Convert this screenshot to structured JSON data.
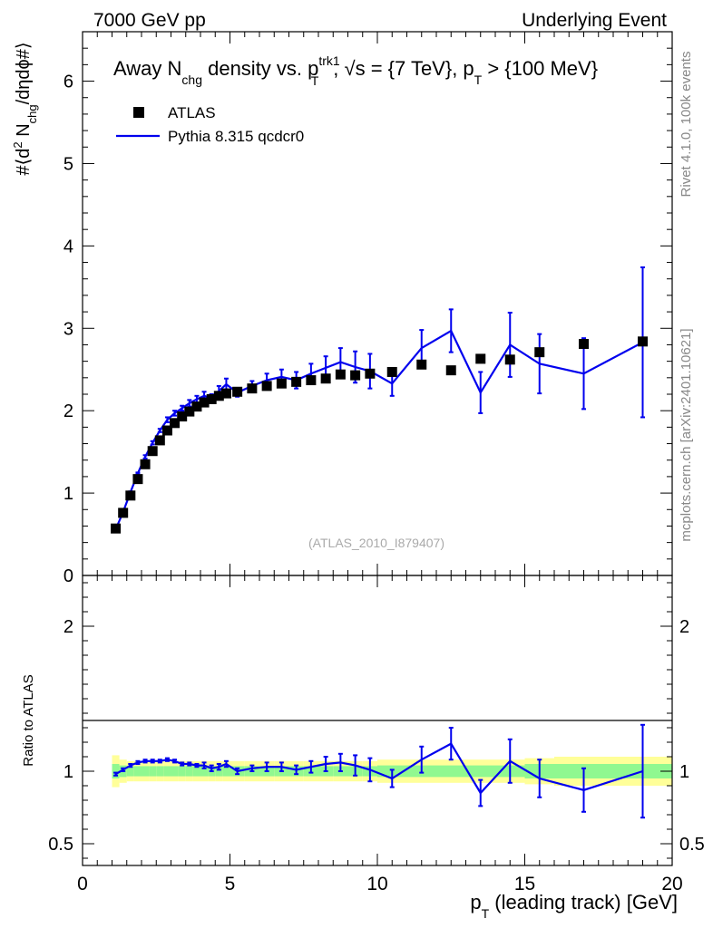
{
  "header": {
    "left": "7000 GeV pp",
    "right": "Underlying Event"
  },
  "side_labels": {
    "rivet": "Rivet 4.1.0,  100k events",
    "mcplots": "mcplots.cern.ch [arXiv:2401.10621]"
  },
  "colors": {
    "mc": "#0000ee",
    "data": "#000000",
    "band_inner": "#90f890",
    "band_outer": "#ffff99"
  },
  "chart_data": [
    {
      "type": "scatter",
      "panel": "main",
      "title": {
        "p1": "Away N",
        "p1_sub": "chg",
        "p2": " density vs. p",
        "p2_sup": "trk1",
        "p2_sub": "T",
        "p3": ", √s = {7 TeV}, p",
        "p3_sub": "T",
        "p4": " > {100 MeV}"
      },
      "ylabel": {
        "a": "#⟨d",
        "a_sup": "2",
        "b": " N",
        "b_sub": "chg",
        "c": "/dηdϕ#⟩"
      },
      "xlim": [
        0,
        20
      ],
      "ylim": [
        0,
        6.6
      ],
      "yticks": [
        0,
        1,
        2,
        3,
        4,
        5,
        6
      ],
      "yticklabels": [
        "0",
        "1",
        "2",
        "3",
        "4",
        "5",
        "6"
      ],
      "legend": [
        {
          "label": "ATLAS",
          "style": "square-marker"
        },
        {
          "label": "Pythia 8.315 qcdcr0",
          "style": "line"
        }
      ],
      "watermark": "(ATLAS_2010_I879407)",
      "series": [
        {
          "name": "ATLAS",
          "x": [
            1.125,
            1.375,
            1.625,
            1.875,
            2.125,
            2.375,
            2.625,
            2.875,
            3.125,
            3.375,
            3.625,
            3.875,
            4.125,
            4.375,
            4.625,
            4.875,
            5.25,
            5.75,
            6.25,
            6.75,
            7.25,
            7.75,
            8.25,
            8.75,
            9.25,
            9.75,
            10.5,
            11.5,
            12.5,
            13.5,
            14.5,
            15.5,
            17.0,
            19.0
          ],
          "y": [
            0.57,
            0.76,
            0.97,
            1.17,
            1.35,
            1.51,
            1.64,
            1.76,
            1.85,
            1.93,
            1.99,
            2.05,
            2.1,
            2.14,
            2.18,
            2.21,
            2.23,
            2.27,
            2.3,
            2.33,
            2.35,
            2.37,
            2.39,
            2.44,
            2.43,
            2.45,
            2.47,
            2.56,
            2.49,
            2.63,
            2.62,
            2.71,
            2.81,
            2.84
          ]
        },
        {
          "name": "Pythia 8.315 qcdcr0",
          "x": [
            1.125,
            1.375,
            1.625,
            1.875,
            2.125,
            2.375,
            2.625,
            2.875,
            3.125,
            3.375,
            3.625,
            3.875,
            4.125,
            4.375,
            4.625,
            4.875,
            5.25,
            5.75,
            6.25,
            6.75,
            7.25,
            7.75,
            8.25,
            8.75,
            9.25,
            9.75,
            10.5,
            11.5,
            12.5,
            13.5,
            14.5,
            15.5,
            17.0,
            19.0
          ],
          "y": [
            0.56,
            0.77,
            1.01,
            1.24,
            1.44,
            1.61,
            1.76,
            1.89,
            1.97,
            2.03,
            2.09,
            2.14,
            2.18,
            2.15,
            2.24,
            2.32,
            2.22,
            2.3,
            2.37,
            2.41,
            2.37,
            2.45,
            2.52,
            2.59,
            2.53,
            2.48,
            2.33,
            2.76,
            2.97,
            2.22,
            2.8,
            2.57,
            2.45,
            2.83
          ],
          "err": [
            0.01,
            0.01,
            0.01,
            0.01,
            0.02,
            0.02,
            0.02,
            0.03,
            0.03,
            0.03,
            0.04,
            0.04,
            0.05,
            0.05,
            0.06,
            0.07,
            0.05,
            0.06,
            0.08,
            0.09,
            0.1,
            0.12,
            0.14,
            0.17,
            0.19,
            0.21,
            0.15,
            0.22,
            0.26,
            0.25,
            0.39,
            0.36,
            0.43,
            0.91
          ]
        }
      ]
    },
    {
      "type": "line",
      "panel": "ratio",
      "ylabel": "Ratio to ATLAS",
      "xlabel": {
        "a": "p",
        "a_sub": "T",
        "b": " (leading track) [GeV]"
      },
      "xlim": [
        0,
        20
      ],
      "ylim": [
        0.35,
        2.35
      ],
      "xticks": [
        0,
        5,
        10,
        15,
        20
      ],
      "xticklabels": [
        "0",
        "5",
        "10",
        "15",
        "20"
      ],
      "yticks": [
        0.5,
        1,
        2
      ],
      "yticklabels": [
        "0.5",
        "1",
        "2"
      ],
      "band_edges": [
        1.0,
        1.25,
        1.5,
        1.75,
        2.0,
        2.25,
        2.5,
        2.75,
        3.0,
        3.25,
        3.5,
        3.75,
        4.0,
        4.25,
        4.5,
        4.75,
        5.0,
        5.5,
        6.0,
        6.5,
        7.0,
        7.5,
        8.0,
        8.5,
        9.0,
        9.5,
        10.0,
        11.0,
        12.0,
        13.0,
        14.0,
        15.0,
        16.0,
        18.0,
        20.0
      ],
      "band_inner": [
        0.05,
        0.04,
        0.035,
        0.035,
        0.035,
        0.035,
        0.035,
        0.035,
        0.035,
        0.035,
        0.035,
        0.035,
        0.035,
        0.035,
        0.035,
        0.035,
        0.035,
        0.035,
        0.035,
        0.035,
        0.035,
        0.035,
        0.035,
        0.035,
        0.035,
        0.035,
        0.04,
        0.04,
        0.04,
        0.04,
        0.04,
        0.05,
        0.05,
        0.05
      ],
      "band_outer": [
        0.11,
        0.08,
        0.07,
        0.07,
        0.07,
        0.07,
        0.07,
        0.07,
        0.07,
        0.07,
        0.07,
        0.07,
        0.07,
        0.07,
        0.07,
        0.07,
        0.07,
        0.07,
        0.07,
        0.07,
        0.07,
        0.07,
        0.07,
        0.07,
        0.07,
        0.07,
        0.08,
        0.08,
        0.08,
        0.08,
        0.08,
        0.09,
        0.1,
        0.1
      ],
      "series": [
        {
          "name": "Pythia 8.315 qcdcr0 / ATLAS",
          "x": [
            1.125,
            1.375,
            1.625,
            1.875,
            2.125,
            2.375,
            2.625,
            2.875,
            3.125,
            3.375,
            3.625,
            3.875,
            4.125,
            4.375,
            4.625,
            4.875,
            5.25,
            5.75,
            6.25,
            6.75,
            7.25,
            7.75,
            8.25,
            8.75,
            9.25,
            9.75,
            10.5,
            11.5,
            12.5,
            13.5,
            14.5,
            15.5,
            17.0,
            19.0
          ],
          "y": [
            0.98,
            1.01,
            1.04,
            1.06,
            1.07,
            1.07,
            1.07,
            1.08,
            1.07,
            1.05,
            1.05,
            1.04,
            1.04,
            1.02,
            1.03,
            1.05,
            1.0,
            1.02,
            1.03,
            1.03,
            1.01,
            1.03,
            1.05,
            1.06,
            1.04,
            1.01,
            0.95,
            1.08,
            1.19,
            0.85,
            1.07,
            0.95,
            0.87,
            1.0
          ],
          "err": [
            0.01,
            0.01,
            0.01,
            0.01,
            0.01,
            0.01,
            0.01,
            0.01,
            0.01,
            0.01,
            0.01,
            0.01,
            0.02,
            0.02,
            0.02,
            0.02,
            0.02,
            0.02,
            0.03,
            0.03,
            0.03,
            0.04,
            0.05,
            0.06,
            0.07,
            0.08,
            0.06,
            0.09,
            0.11,
            0.09,
            0.15,
            0.13,
            0.15,
            0.32
          ]
        }
      ]
    }
  ]
}
